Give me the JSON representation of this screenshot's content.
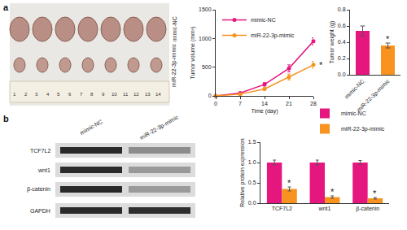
{
  "panel_labels": [
    "a",
    "b"
  ],
  "tumor_photo": {
    "rows": [
      {
        "label": "mimic-NC",
        "tumors": 7
      },
      {
        "label": "miR-22-3p-mimic",
        "tumors": 7
      }
    ],
    "ruler_numbers": [
      1,
      2,
      3,
      4,
      5,
      6,
      7,
      8,
      9,
      10,
      11,
      12,
      13,
      14
    ]
  },
  "western_blot": {
    "groups": [
      "mimic-NC",
      "miR-22-3p-mimic"
    ],
    "bands": [
      "TCF7L2",
      "wnt1",
      "β-catenin",
      "GAPDH"
    ]
  },
  "chart_data": [
    {
      "type": "line",
      "x_label": "Time (day)",
      "y_label": "Tumor volume (mm³)",
      "x": [
        0,
        7,
        14,
        21,
        28
      ],
      "series": [
        {
          "name": "mimic-NC",
          "color": "#e5177e",
          "values": [
            0,
            50,
            200,
            480,
            950
          ],
          "errors": [
            0,
            10,
            30,
            60,
            60
          ]
        },
        {
          "name": "miR-22-3p-mimic",
          "color": "#f7931e",
          "values": [
            0,
            30,
            120,
            330,
            540
          ],
          "errors": [
            0,
            8,
            20,
            50,
            60
          ]
        }
      ],
      "xlim": [
        0,
        28
      ],
      "xticks": [
        0,
        7,
        14,
        21,
        28
      ],
      "ylim": [
        0,
        1500
      ],
      "yticks": [
        0,
        500,
        1000,
        1500
      ],
      "marker": "circle",
      "line_style": "solid",
      "grid": false,
      "legend": "upper left",
      "annotations": [
        {
          "text": "*",
          "series": "miR-22-3p-mimic",
          "x": 28
        }
      ]
    },
    {
      "type": "bar",
      "y_label": "Tumor weight (g)",
      "categories": [
        "mimic-NC",
        "miR-22-3p-mimic"
      ],
      "values": [
        0.54,
        0.36
      ],
      "errors": [
        0.06,
        0.03
      ],
      "colors": [
        "#e5177e",
        "#f7931e"
      ],
      "ylim": [
        0,
        0.8
      ],
      "yticks": [
        {
          "value": 0,
          "label": "0.0"
        },
        0.2,
        0.4,
        0.6,
        0.8
      ],
      "grid": false,
      "annotations": [
        {
          "text": "*",
          "category": "miR-22-3p-mimic"
        }
      ]
    },
    {
      "type": "bar",
      "y_label": "Relative protein expression",
      "categories": [
        "TCF7L2",
        "wnt1",
        "β-catenin"
      ],
      "series": [
        {
          "name": "mimic-NC",
          "color": "#e5177e",
          "values": [
            1.0,
            1.0,
            1.0
          ],
          "errors": [
            0.06,
            0.06,
            0.05
          ]
        },
        {
          "name": "miR-22-3p-mimic",
          "color": "#f7931e",
          "values": [
            0.35,
            0.15,
            0.12
          ],
          "errors": [
            0.05,
            0.03,
            0.02
          ]
        }
      ],
      "ylim": [
        0,
        1.5
      ],
      "yticks": [
        {
          "value": 0,
          "label": "0.0"
        },
        0.5,
        {
          "value": 1,
          "label": "1.0"
        },
        1.5
      ],
      "grid": false,
      "legend": "upper right",
      "annotations": [
        {
          "text": "*",
          "series": "miR-22-3p-mimic",
          "category": "TCF7L2"
        },
        {
          "text": "*",
          "series": "miR-22-3p-mimic",
          "category": "wnt1"
        },
        {
          "text": "*",
          "series": "miR-22-3p-mimic",
          "category": "β-catenin"
        }
      ]
    }
  ]
}
